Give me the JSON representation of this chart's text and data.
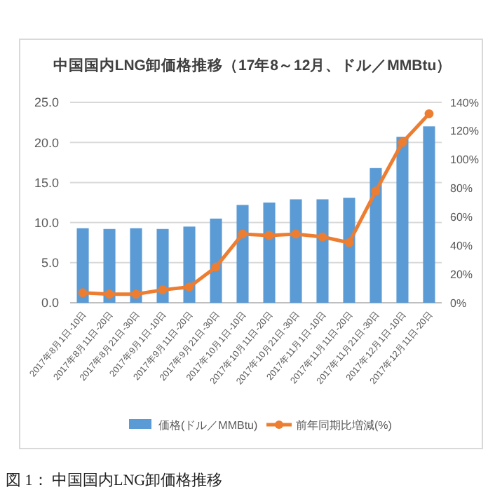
{
  "chart_data": {
    "type": "bar",
    "title": "中国国内LNG卸価格推移（17年8～12月、ドル／MMBtu）",
    "categories": [
      "2017年8月1日-10日",
      "2017年8月11日-20日",
      "2017年8月21日-30日",
      "2017年9月1日-10日",
      "2017年9月11日-20日",
      "2017年9月21日-30日",
      "2017年10月1日-10日",
      "2017年10月11日-20日",
      "2017年10月21日-30日",
      "2017年11月1日-10日",
      "2017年11月11日-20日",
      "2017年11月21日-30日",
      "2017年12月1日-10日",
      "2017年12月11日-20日"
    ],
    "series": [
      {
        "name": "価格(ドル／MMBtu)",
        "color": "#5b9bd5",
        "values": [
          9.3,
          9.2,
          9.3,
          9.2,
          9.5,
          10.5,
          12.2,
          12.5,
          12.9,
          12.9,
          13.1,
          16.8,
          20.7,
          22.0
        ]
      },
      {
        "name": "前年同期比増減(%)",
        "type": "line",
        "axis": "y2",
        "color": "#ed7d31",
        "values": [
          7,
          6,
          6,
          9,
          11,
          25,
          48,
          47,
          48,
          46,
          42,
          78,
          112,
          132
        ]
      }
    ],
    "ylim": [
      0,
      25
    ],
    "yticks": [
      {
        "value": 0,
        "label": "0.0"
      },
      {
        "value": 5,
        "label": "5.0"
      },
      {
        "value": 10,
        "label": "10.0"
      },
      {
        "value": 15,
        "label": "15.0"
      },
      {
        "value": 20,
        "label": "20.0"
      },
      {
        "value": 25,
        "label": "25.0"
      }
    ],
    "y2lim": [
      0,
      140
    ],
    "y2ticks": [
      {
        "value": 0,
        "label": "0%"
      },
      {
        "value": 20,
        "label": "20%"
      },
      {
        "value": 40,
        "label": "40%"
      },
      {
        "value": 60,
        "label": "60%"
      },
      {
        "value": 80,
        "label": "80%"
      },
      {
        "value": 100,
        "label": "100%"
      },
      {
        "value": 120,
        "label": "120%"
      },
      {
        "value": 140,
        "label": "140%"
      }
    ],
    "grid": "y",
    "legend": "bottom",
    "marker": "circle",
    "line_style": "solid",
    "annotations": [
      "図 1： 中国国内LNG卸価格推移"
    ]
  }
}
